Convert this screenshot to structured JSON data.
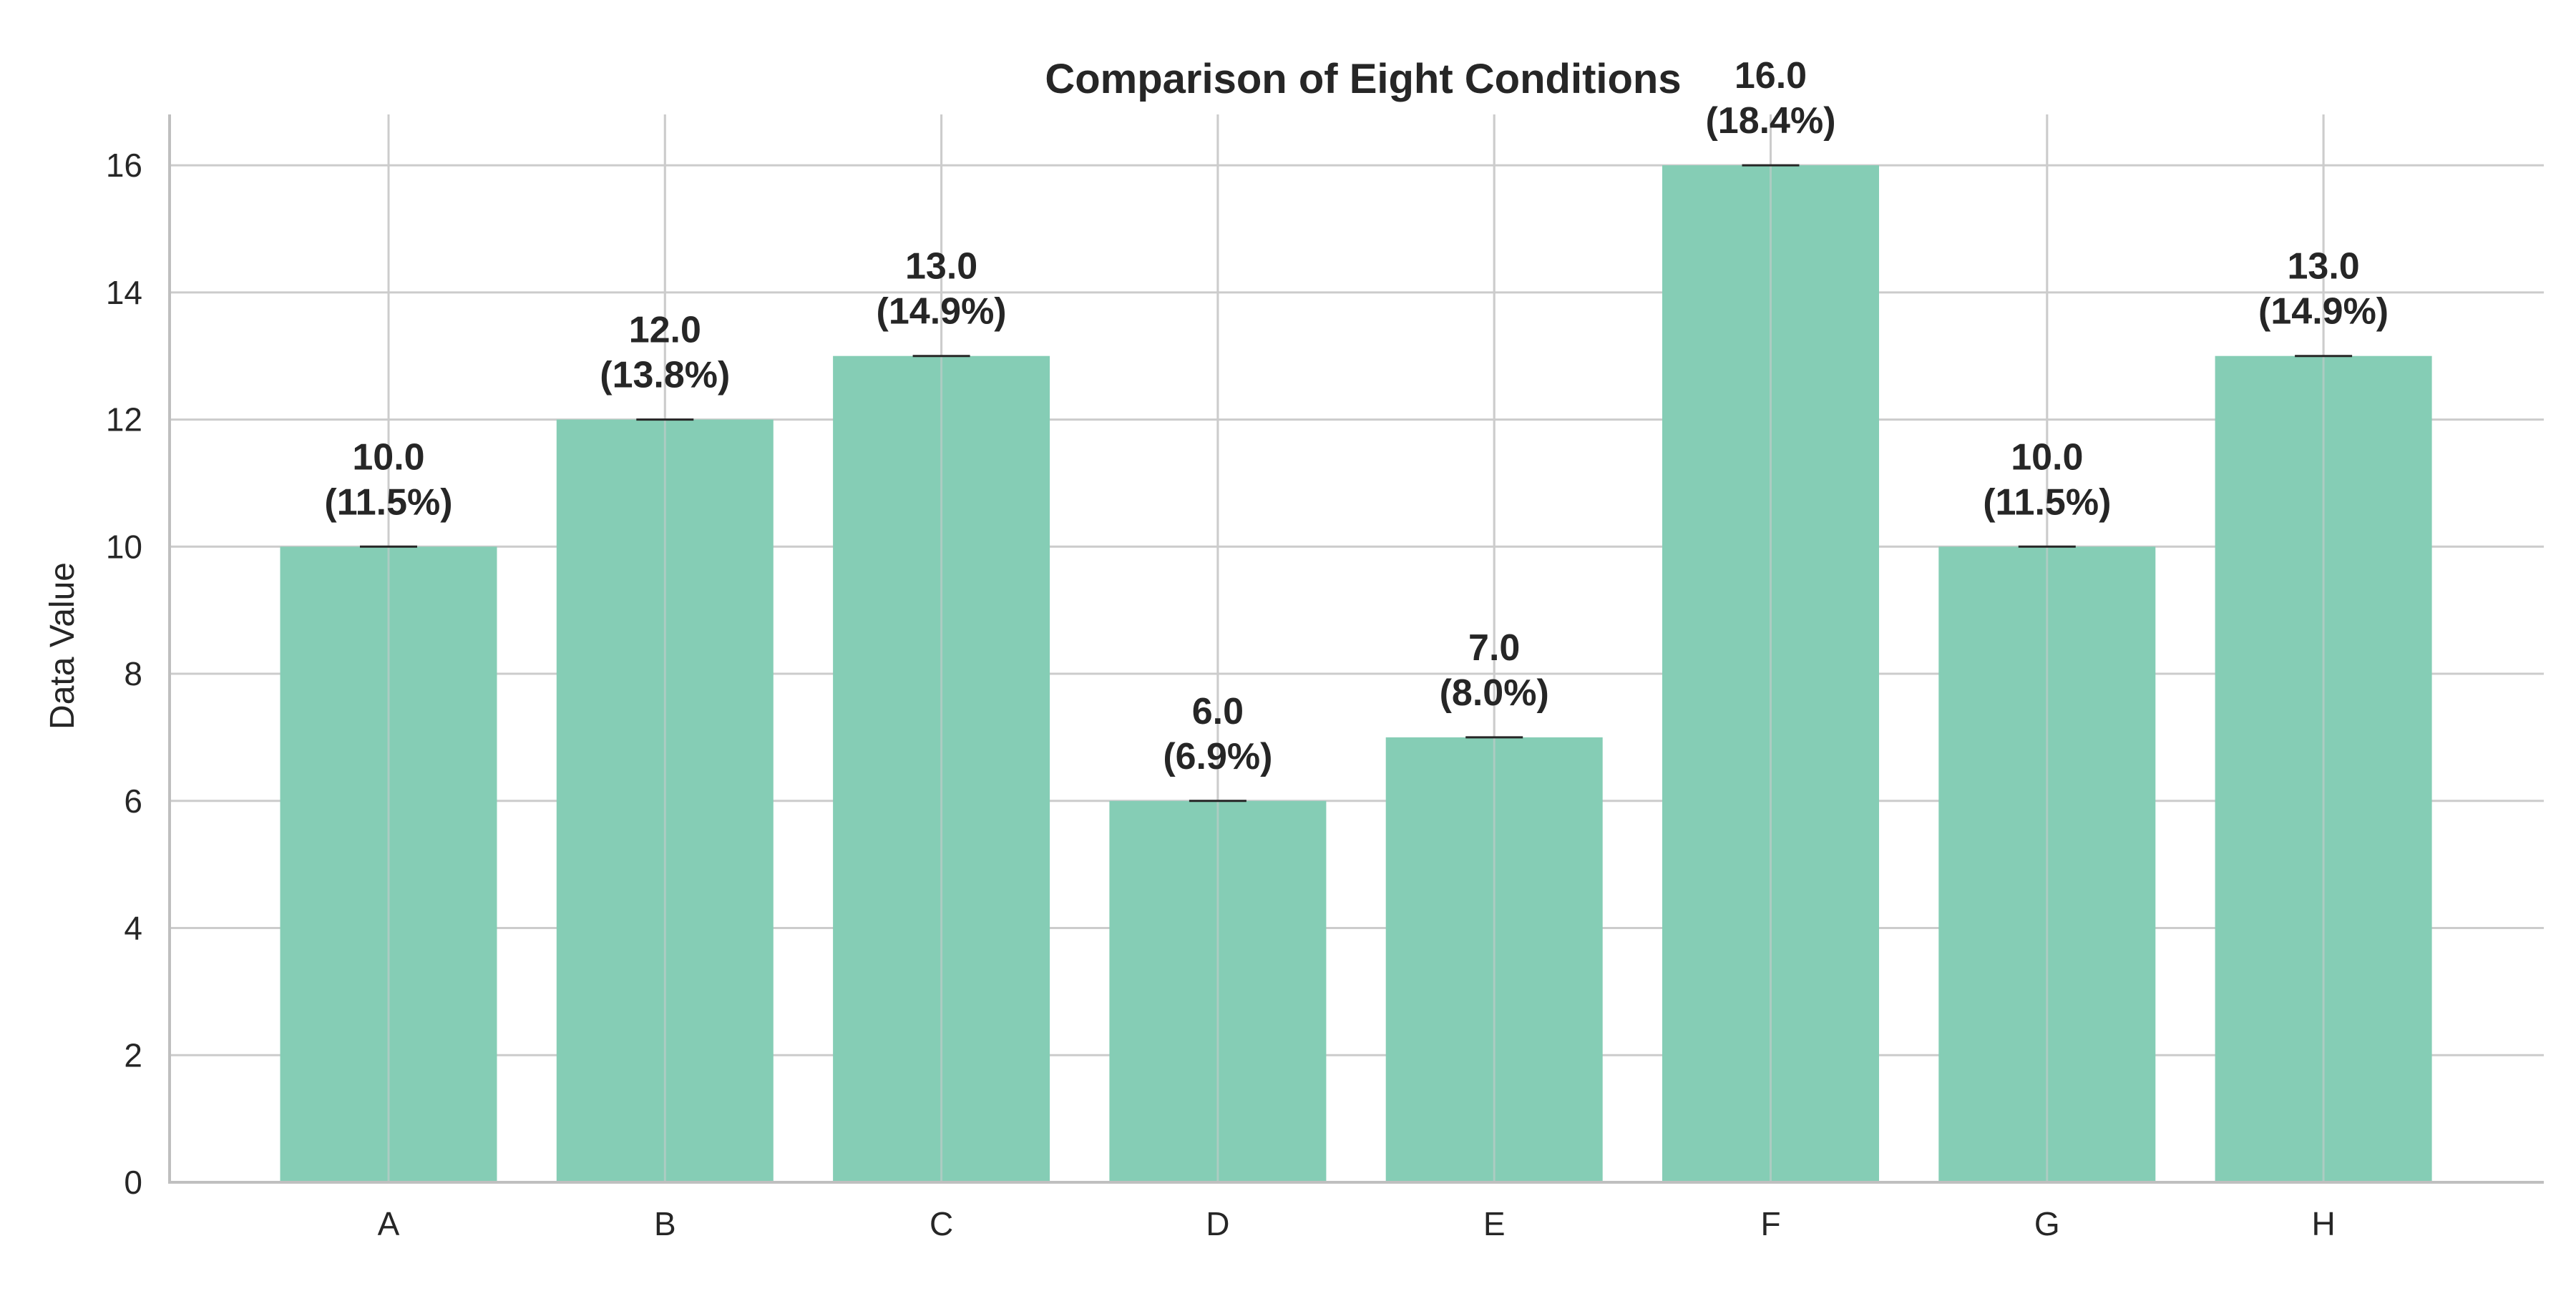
{
  "chart_data": {
    "type": "bar",
    "title": "Comparison of Eight Conditions",
    "xlabel": "",
    "ylabel": "Data Value",
    "categories": [
      "A",
      "B",
      "C",
      "D",
      "E",
      "F",
      "G",
      "H"
    ],
    "values": [
      10,
      12,
      13,
      6,
      7,
      16,
      10,
      13
    ],
    "value_labels": [
      "10.0",
      "12.0",
      "13.0",
      "6.0",
      "7.0",
      "16.0",
      "10.0",
      "13.0"
    ],
    "percent_labels": [
      "(11.5%)",
      "(13.8%)",
      "(14.9%)",
      "(6.9%)",
      "(8.0%)",
      "(18.4%)",
      "(11.5%)",
      "(14.9%)"
    ],
    "ylim": [
      0,
      16.8
    ],
    "yticks": [
      0,
      2,
      4,
      6,
      8,
      10,
      12,
      14,
      16
    ],
    "ytick_labels": [
      "0",
      "2",
      "4",
      "6",
      "8",
      "10",
      "12",
      "14",
      "16"
    ],
    "grid": true,
    "colors": {
      "bar": "#85cdb5",
      "grid": "#cccccc",
      "axis": "#bfbfbf",
      "errorbar": "#262626",
      "text": "#262626"
    }
  }
}
